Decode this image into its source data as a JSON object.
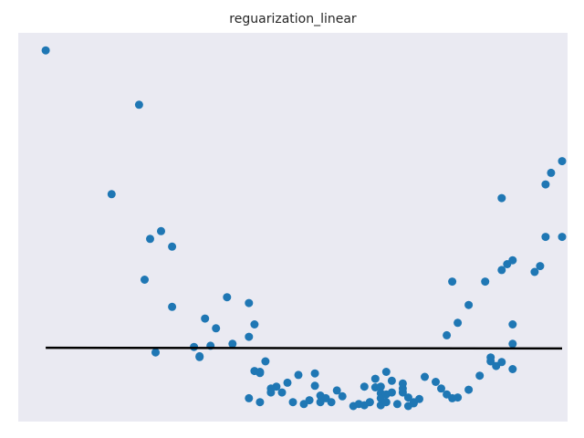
{
  "chart_data": {
    "type": "scatter",
    "title": "reguarization_linear",
    "xlabel": "",
    "ylabel": "",
    "x_ticks_visible": false,
    "y_ticks_visible": false,
    "grid": false,
    "xlim": [
      0,
      1
    ],
    "ylim": [
      0,
      1
    ],
    "colors": {
      "background": "#eaeaf2",
      "points": "#1f77b4",
      "fit_line": "#000000"
    },
    "points": [
      [
        0.05,
        0.955
      ],
      [
        0.22,
        0.815
      ],
      [
        0.17,
        0.585
      ],
      [
        0.24,
        0.47
      ],
      [
        0.26,
        0.49
      ],
      [
        0.28,
        0.45
      ],
      [
        0.23,
        0.365
      ],
      [
        0.28,
        0.295
      ],
      [
        0.34,
        0.265
      ],
      [
        0.38,
        0.32
      ],
      [
        0.36,
        0.24
      ],
      [
        0.42,
        0.218
      ],
      [
        0.35,
        0.195
      ],
      [
        0.32,
        0.192
      ],
      [
        0.39,
        0.2
      ],
      [
        0.25,
        0.178
      ],
      [
        0.33,
        0.168
      ],
      [
        0.33,
        0.166
      ],
      [
        0.45,
        0.155
      ],
      [
        0.43,
        0.13
      ],
      [
        0.44,
        0.128
      ],
      [
        0.42,
        0.06
      ],
      [
        0.44,
        0.05
      ],
      [
        0.47,
        0.09
      ],
      [
        0.46,
        0.085
      ],
      [
        0.48,
        0.075
      ],
      [
        0.46,
        0.075
      ],
      [
        0.49,
        0.1
      ],
      [
        0.51,
        0.12
      ],
      [
        0.5,
        0.05
      ],
      [
        0.52,
        0.045
      ],
      [
        0.53,
        0.055
      ],
      [
        0.54,
        0.092
      ],
      [
        0.55,
        0.067
      ],
      [
        0.54,
        0.124
      ],
      [
        0.56,
        0.06
      ],
      [
        0.55,
        0.05
      ],
      [
        0.57,
        0.05
      ],
      [
        0.58,
        0.08
      ],
      [
        0.59,
        0.065
      ],
      [
        0.61,
        0.04
      ],
      [
        0.62,
        0.045
      ],
      [
        0.63,
        0.042
      ],
      [
        0.64,
        0.05
      ],
      [
        0.63,
        0.09
      ],
      [
        0.65,
        0.088
      ],
      [
        0.66,
        0.09
      ],
      [
        0.66,
        0.073
      ],
      [
        0.66,
        0.06
      ],
      [
        0.67,
        0.07
      ],
      [
        0.68,
        0.075
      ],
      [
        0.65,
        0.11
      ],
      [
        0.66,
        0.042
      ],
      [
        0.67,
        0.05
      ],
      [
        0.64,
        0.05
      ],
      [
        0.7,
        0.075
      ],
      [
        0.71,
        0.062
      ],
      [
        0.69,
        0.045
      ],
      [
        0.72,
        0.05
      ],
      [
        0.71,
        0.04
      ],
      [
        0.73,
        0.058
      ],
      [
        0.72,
        0.047
      ],
      [
        0.67,
        0.128
      ],
      [
        0.68,
        0.105
      ],
      [
        0.7,
        0.085
      ],
      [
        0.7,
        0.098
      ],
      [
        0.74,
        0.115
      ],
      [
        0.76,
        0.102
      ],
      [
        0.77,
        0.085
      ],
      [
        0.78,
        0.07
      ],
      [
        0.79,
        0.06
      ],
      [
        0.8,
        0.062
      ],
      [
        0.82,
        0.082
      ],
      [
        0.84,
        0.118
      ],
      [
        0.86,
        0.155
      ],
      [
        0.87,
        0.143
      ],
      [
        0.88,
        0.153
      ],
      [
        0.9,
        0.135
      ],
      [
        0.9,
        0.2
      ],
      [
        0.86,
        0.165
      ],
      [
        0.78,
        0.222
      ],
      [
        0.8,
        0.254
      ],
      [
        0.82,
        0.3
      ],
      [
        0.85,
        0.36
      ],
      [
        0.89,
        0.405
      ],
      [
        0.9,
        0.415
      ],
      [
        0.88,
        0.39
      ],
      [
        0.94,
        0.385
      ],
      [
        0.95,
        0.4
      ],
      [
        0.96,
        0.475
      ],
      [
        0.99,
        0.67
      ],
      [
        0.96,
        0.61
      ],
      [
        0.97,
        0.64
      ],
      [
        0.99,
        0.475
      ],
      [
        0.88,
        0.575
      ],
      [
        0.79,
        0.36
      ],
      [
        0.9,
        0.25
      ],
      [
        0.43,
        0.25
      ],
      [
        0.42,
        0.305
      ],
      [
        0.44,
        0.125
      ]
    ],
    "fit_line": [
      [
        0.05,
        0.19
      ],
      [
        0.99,
        0.188
      ]
    ]
  }
}
